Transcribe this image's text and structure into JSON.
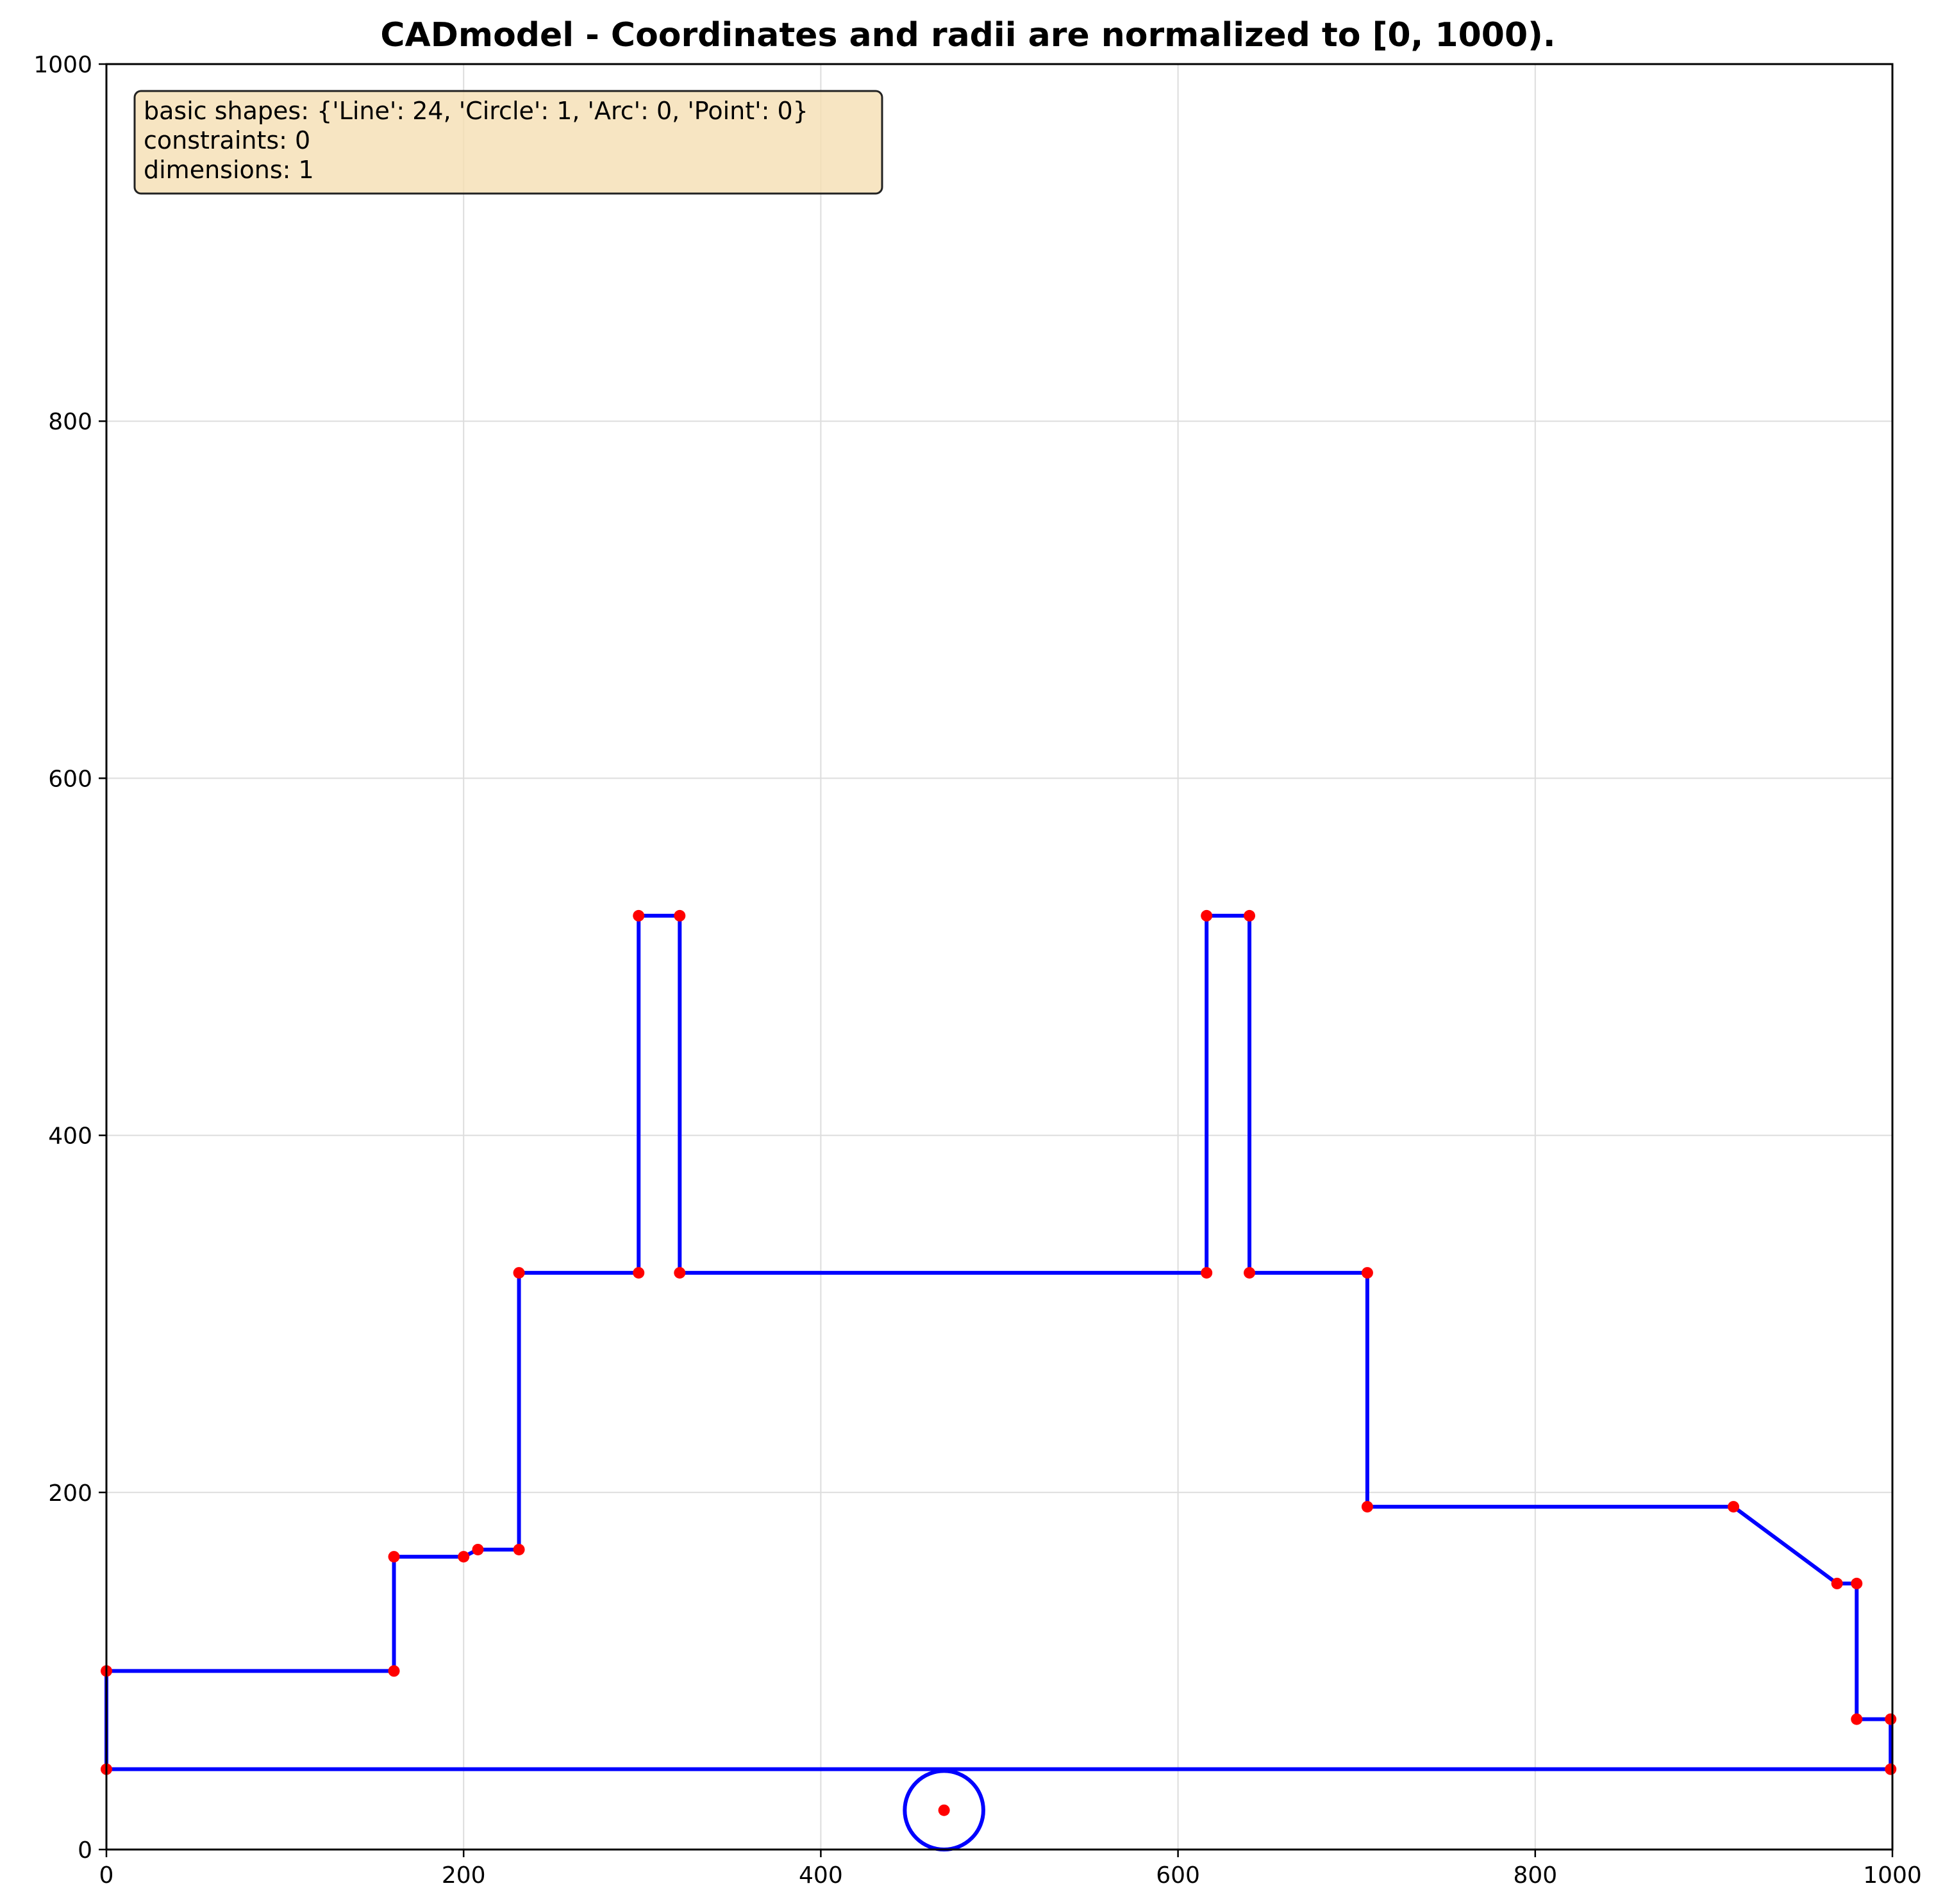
{
  "chart_data": {
    "type": "scatter",
    "title": "CADmodel - Coordinates and radii are normalized to [0, 1000).",
    "xlabel": "",
    "ylabel": "",
    "xlim": [
      0,
      1000
    ],
    "ylim": [
      0,
      1000
    ],
    "xticks": [
      "0",
      "200",
      "400",
      "600",
      "800",
      "1000"
    ],
    "yticks": [
      "0",
      "200",
      "400",
      "600",
      "800",
      "1000"
    ],
    "grid": true,
    "colors": {
      "line": "#0000ff",
      "point": "#ff0000",
      "box_fill": "#f5deb3",
      "grid": "#dddddd"
    },
    "info_box": {
      "placement": "top-left",
      "lines": [
        "basic shapes: {'Line': 24, 'Circle': 1, 'Arc': 0, 'Point': 0}",
        "constraints: 0",
        "dimensions: 1"
      ]
    },
    "lines": [
      [
        [
          0,
          45
        ],
        [
          0,
          100
        ]
      ],
      [
        [
          0,
          100
        ],
        [
          161,
          100
        ]
      ],
      [
        [
          161,
          100
        ],
        [
          161,
          164
        ]
      ],
      [
        [
          161,
          164
        ],
        [
          200,
          164
        ]
      ],
      [
        [
          200,
          164
        ],
        [
          208,
          168
        ]
      ],
      [
        [
          208,
          168
        ],
        [
          231,
          168
        ]
      ],
      [
        [
          231,
          168
        ],
        [
          231,
          323
        ]
      ],
      [
        [
          231,
          323
        ],
        [
          298,
          323
        ]
      ],
      [
        [
          298,
          323
        ],
        [
          298,
          523
        ]
      ],
      [
        [
          298,
          523
        ],
        [
          321,
          523
        ]
      ],
      [
        [
          321,
          523
        ],
        [
          321,
          323
        ]
      ],
      [
        [
          321,
          323
        ],
        [
          616,
          323
        ]
      ],
      [
        [
          616,
          323
        ],
        [
          616,
          523
        ]
      ],
      [
        [
          616,
          523
        ],
        [
          640,
          523
        ]
      ],
      [
        [
          640,
          523
        ],
        [
          640,
          323
        ]
      ],
      [
        [
          640,
          323
        ],
        [
          706,
          323
        ]
      ],
      [
        [
          706,
          323
        ],
        [
          706,
          192
        ]
      ],
      [
        [
          706,
          192
        ],
        [
          911,
          192
        ]
      ],
      [
        [
          911,
          192
        ],
        [
          969,
          149
        ]
      ],
      [
        [
          969,
          149
        ],
        [
          980,
          149
        ]
      ],
      [
        [
          980,
          149
        ],
        [
          980,
          73
        ]
      ],
      [
        [
          980,
          73
        ],
        [
          999,
          73
        ]
      ],
      [
        [
          999,
          73
        ],
        [
          999,
          45
        ]
      ],
      [
        [
          999,
          45
        ],
        [
          0,
          45
        ]
      ]
    ],
    "circles": [
      {
        "cx": 469,
        "cy": 22,
        "r": 22
      }
    ]
  }
}
